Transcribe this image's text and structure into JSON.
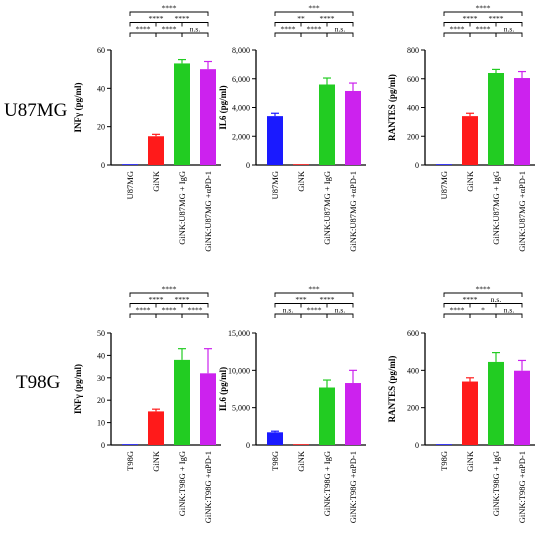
{
  "row_labels": [
    "U87MG",
    "T98G"
  ],
  "chart_data": [
    {
      "type": "bar",
      "row": 0,
      "col": 0,
      "categories": [
        "U87MG",
        "GiNK",
        "GiNK:U87MG + IgG",
        "GiNK:U87MG +αPD-1"
      ],
      "values": [
        0,
        15,
        53,
        50
      ],
      "errors": [
        0,
        1,
        2,
        4
      ],
      "colors": [
        "#1a1aff",
        "#ff1a1a",
        "#22cc22",
        "#cc22ee"
      ],
      "ylabel": "INFγ (pg/ml)",
      "ylim": [
        0,
        60
      ],
      "yticks": [
        0,
        20,
        40,
        60
      ],
      "ytick_labels": [
        "0",
        "20",
        "40",
        "60"
      ],
      "significance": [
        {
          "from": 0,
          "to": 3,
          "label": "****"
        },
        {
          "from": 0,
          "to": 2,
          "label": "****"
        },
        {
          "from": 1,
          "to": 3,
          "label": "****"
        },
        {
          "from": 0,
          "to": 1,
          "label": "****"
        },
        {
          "from": 1,
          "to": 2,
          "label": "****"
        },
        {
          "from": 2,
          "to": 3,
          "label": "n.s."
        }
      ]
    },
    {
      "type": "bar",
      "row": 0,
      "col": 1,
      "categories": [
        "U87MG",
        "GiNK",
        "GiNK:U87MG + IgG",
        "GiNK:U87MG +αPD-1"
      ],
      "values": [
        3400,
        0,
        5600,
        5150
      ],
      "errors": [
        200,
        0,
        450,
        550
      ],
      "colors": [
        "#1a1aff",
        "#ff1a1a",
        "#22cc22",
        "#cc22ee"
      ],
      "ylabel": "IL6 (pg/ml)",
      "ylim": [
        0,
        8000
      ],
      "yticks": [
        0,
        2000,
        4000,
        6000,
        8000
      ],
      "ytick_labels": [
        "0",
        "2,000",
        "4,000",
        "6,000",
        "8,000"
      ],
      "significance": [
        {
          "from": 0,
          "to": 3,
          "label": "***"
        },
        {
          "from": 0,
          "to": 2,
          "label": "**"
        },
        {
          "from": 1,
          "to": 3,
          "label": "****"
        },
        {
          "from": 0,
          "to": 1,
          "label": "****"
        },
        {
          "from": 1,
          "to": 2,
          "label": "****"
        },
        {
          "from": 2,
          "to": 3,
          "label": "n.s."
        }
      ]
    },
    {
      "type": "bar",
      "row": 0,
      "col": 2,
      "categories": [
        "U87MG",
        "GiNK",
        "GiNK:U87MG + IgG",
        "GiNK:U87MG +αPD-1"
      ],
      "values": [
        0,
        340,
        640,
        605
      ],
      "errors": [
        0,
        20,
        25,
        45
      ],
      "colors": [
        "#1a1aff",
        "#ff1a1a",
        "#22cc22",
        "#cc22ee"
      ],
      "ylabel": "RANTES (pg/ml)",
      "ylim": [
        0,
        800
      ],
      "yticks": [
        0,
        200,
        400,
        600,
        800
      ],
      "ytick_labels": [
        "0",
        "200",
        "400",
        "600",
        "800"
      ],
      "significance": [
        {
          "from": 0,
          "to": 3,
          "label": "****"
        },
        {
          "from": 0,
          "to": 2,
          "label": "****"
        },
        {
          "from": 1,
          "to": 3,
          "label": "****"
        },
        {
          "from": 0,
          "to": 1,
          "label": "****"
        },
        {
          "from": 1,
          "to": 2,
          "label": "****"
        },
        {
          "from": 2,
          "to": 3,
          "label": "n.s."
        }
      ]
    },
    {
      "type": "bar",
      "row": 1,
      "col": 0,
      "categories": [
        "T98G",
        "GiNK",
        "GiNK:T98G + IgG",
        "GiNK:T98G +αPD-1"
      ],
      "values": [
        0,
        15,
        38,
        32
      ],
      "errors": [
        0,
        1,
        5,
        11
      ],
      "colors": [
        "#1a1aff",
        "#ff1a1a",
        "#22cc22",
        "#cc22ee"
      ],
      "ylabel": "INFγ (pg/ml)",
      "ylim": [
        0,
        50
      ],
      "yticks": [
        0,
        10,
        20,
        30,
        40,
        50
      ],
      "ytick_labels": [
        "0",
        "10",
        "20",
        "30",
        "40",
        "50"
      ],
      "significance": [
        {
          "from": 0,
          "to": 3,
          "label": "****"
        },
        {
          "from": 0,
          "to": 2,
          "label": "****"
        },
        {
          "from": 1,
          "to": 3,
          "label": "****"
        },
        {
          "from": 0,
          "to": 1,
          "label": "****"
        },
        {
          "from": 1,
          "to": 2,
          "label": "****"
        },
        {
          "from": 2,
          "to": 3,
          "label": "****"
        }
      ]
    },
    {
      "type": "bar",
      "row": 1,
      "col": 1,
      "categories": [
        "T98G",
        "GiNK",
        "GiNK:T98G + IgG",
        "GiNK:T98G +αPD-1"
      ],
      "values": [
        1700,
        0,
        7700,
        8300
      ],
      "errors": [
        150,
        0,
        1000,
        1700
      ],
      "colors": [
        "#1a1aff",
        "#ff1a1a",
        "#22cc22",
        "#cc22ee"
      ],
      "ylabel": "IL6 (pg/ml)",
      "ylim": [
        0,
        15000
      ],
      "yticks": [
        0,
        5000,
        10000,
        15000
      ],
      "ytick_labels": [
        "0",
        "5,000",
        "10,000",
        "15,000"
      ],
      "significance": [
        {
          "from": 0,
          "to": 3,
          "label": "***"
        },
        {
          "from": 0,
          "to": 2,
          "label": "***"
        },
        {
          "from": 1,
          "to": 3,
          "label": "****"
        },
        {
          "from": 0,
          "to": 1,
          "label": "n.s."
        },
        {
          "from": 1,
          "to": 2,
          "label": "****"
        },
        {
          "from": 2,
          "to": 3,
          "label": "n.s."
        }
      ]
    },
    {
      "type": "bar",
      "row": 1,
      "col": 2,
      "categories": [
        "T98G",
        "GiNK",
        "GiNK:T98G + IgG",
        "GiNK:T98G +αPD-1"
      ],
      "values": [
        0,
        340,
        445,
        398
      ],
      "errors": [
        0,
        20,
        50,
        55
      ],
      "colors": [
        "#1a1aff",
        "#ff1a1a",
        "#22cc22",
        "#cc22ee"
      ],
      "ylabel": "RANTES (pg/ml)",
      "ylim": [
        0,
        600
      ],
      "yticks": [
        0,
        200,
        400,
        600
      ],
      "ytick_labels": [
        "0",
        "200",
        "400",
        "600"
      ],
      "significance": [
        {
          "from": 0,
          "to": 3,
          "label": "****"
        },
        {
          "from": 0,
          "to": 2,
          "label": "****"
        },
        {
          "from": 1,
          "to": 3,
          "label": "n.s."
        },
        {
          "from": 0,
          "to": 1,
          "label": "****"
        },
        {
          "from": 1,
          "to": 2,
          "label": "*"
        },
        {
          "from": 2,
          "to": 3,
          "label": "n.s."
        }
      ]
    }
  ]
}
